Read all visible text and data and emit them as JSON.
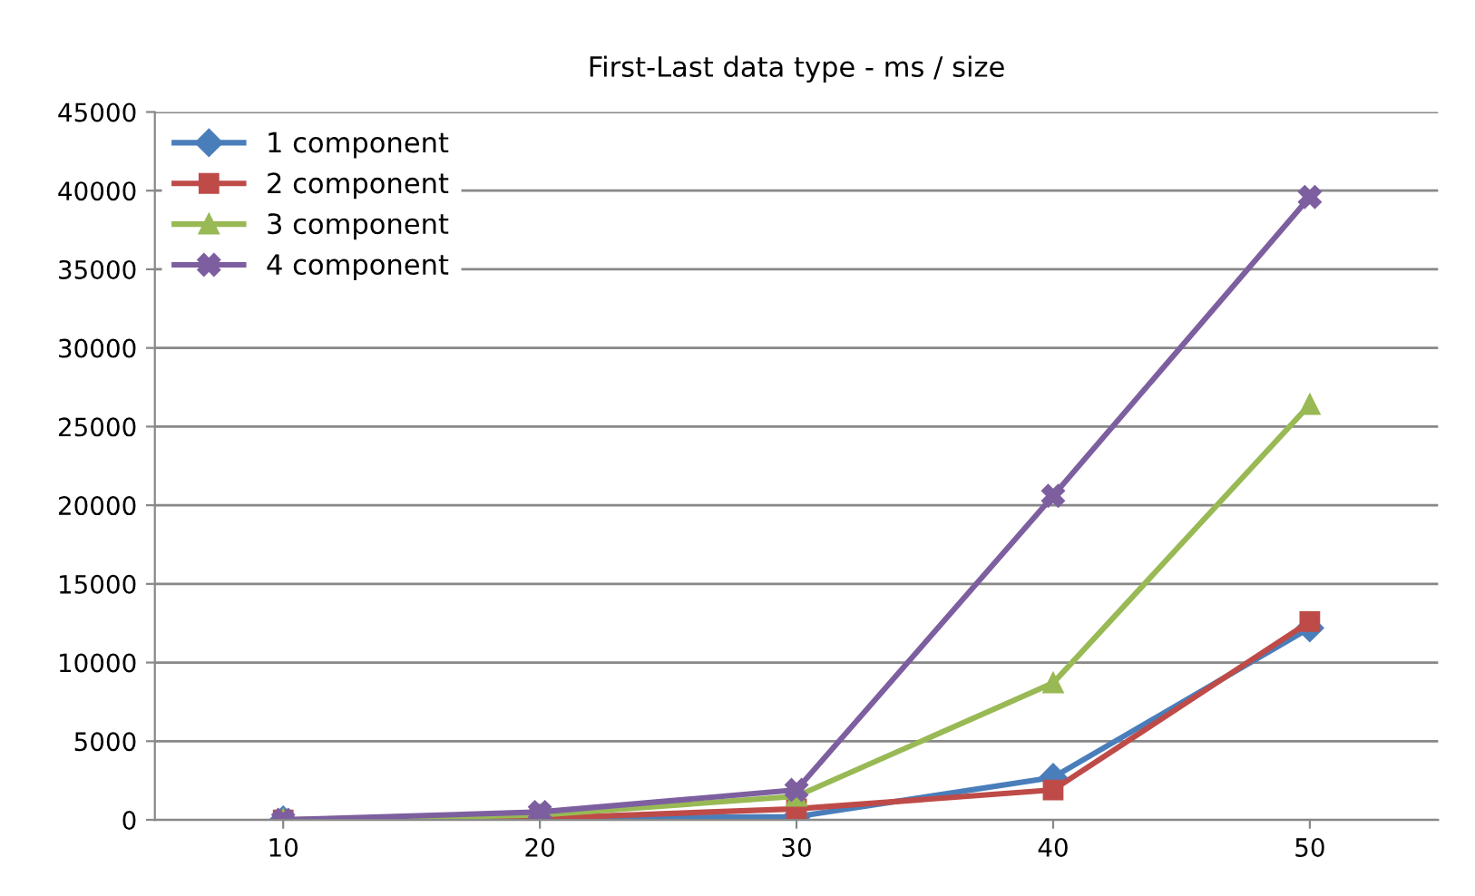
{
  "chart_data": {
    "type": "line",
    "title": "First-Last data type - ms / size",
    "categories": [
      "10",
      "20",
      "30",
      "40",
      "50"
    ],
    "series": [
      {
        "name": "1 component",
        "color": "#4a7ebb",
        "marker": "diamond",
        "values": [
          0,
          100,
          200,
          2700,
          12200
        ]
      },
      {
        "name": "2 component",
        "color": "#be4b48",
        "marker": "square",
        "values": [
          0,
          100,
          700,
          1900,
          12600
        ]
      },
      {
        "name": "3 component",
        "color": "#98b954",
        "marker": "triangle",
        "values": [
          0,
          300,
          1500,
          8700,
          26400
        ]
      },
      {
        "name": "4 component",
        "color": "#7d5fa0",
        "marker": "cross",
        "values": [
          0,
          500,
          1900,
          20600,
          39600
        ]
      }
    ],
    "ylim": [
      0,
      45000
    ],
    "yticks": [
      0,
      5000,
      10000,
      15000,
      20000,
      25000,
      30000,
      35000,
      40000,
      45000
    ],
    "grid": "y",
    "legend": "top left"
  }
}
